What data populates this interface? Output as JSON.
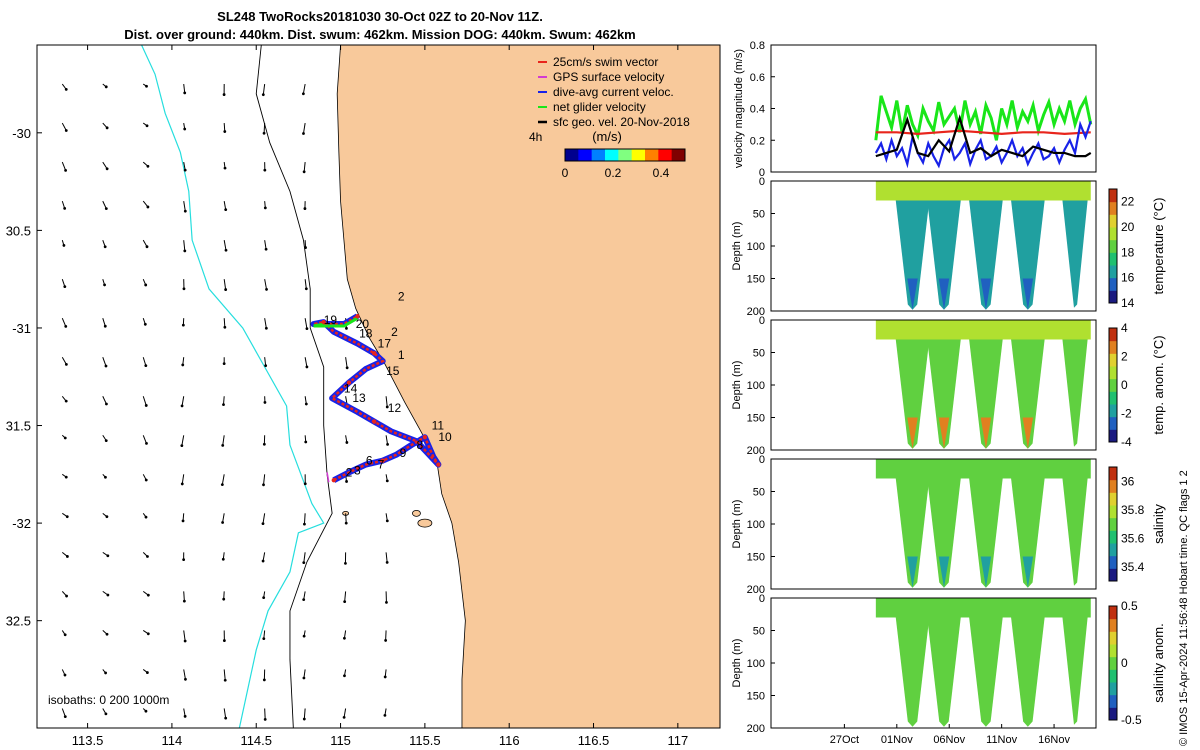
{
  "title_line1": "SL248 TwoRocks20181030 30-Oct 02Z to 20-Nov 11Z.",
  "title_line2": "Dist. over ground: 440km. Dist. swum: 462km. Mission DOG: 440km. Swum: 462km",
  "footer_credit": "© IMOS 15-Apr-2024 11:56:48 Hobart time. QC flags 1  2",
  "colors": {
    "land": "#f8c99b",
    "swim": "#e8251c",
    "gps": "#d23bd2",
    "dive": "#1822e8",
    "net": "#19e619",
    "geo": "#000000",
    "contour": "#26dede"
  },
  "chart_data": [
    {
      "type": "map",
      "id": "track_map",
      "xlim": [
        113.2,
        117.25
      ],
      "ylim": [
        -33.05,
        -29.55
      ],
      "x_ticks": [
        113.5,
        114,
        114.5,
        115,
        115.5,
        116,
        116.5,
        117
      ],
      "x_tick_labels": [
        "113.5",
        "114",
        "114.5",
        "115",
        "115.5",
        "116",
        "116.5",
        "117"
      ],
      "y_ticks": [
        -30,
        -30.5,
        -31,
        -31.5,
        -32,
        -32.5
      ],
      "y_tick_labels": [
        "-30",
        "30.5",
        "-31",
        "31.5",
        "-32",
        "32.5"
      ],
      "legend": {
        "position": "top-right",
        "entries": [
          "25cm/s swim vector",
          "GPS surface velocity",
          "dive-avg current veloc.",
          "net glider velocity",
          "sfc geo. vel. 20-Nov-2018"
        ]
      },
      "colorbar": {
        "label": "(m/s)",
        "ticks": [
          0,
          0.2,
          0.4
        ],
        "tick_labels": [
          "0",
          "0.2",
          "0.4"
        ],
        "range": [
          0,
          0.5
        ]
      },
      "time_note": "4h",
      "isobath_note": "isobaths: 0   200  1000m",
      "track": [
        [
          114.96,
          -31.78
        ],
        [
          115.05,
          -31.74
        ],
        [
          115.15,
          -31.7
        ],
        [
          115.25,
          -31.68
        ],
        [
          115.33,
          -31.65
        ],
        [
          115.42,
          -31.6
        ],
        [
          115.5,
          -31.56
        ],
        [
          115.52,
          -31.6
        ],
        [
          115.55,
          -31.66
        ],
        [
          115.58,
          -31.7
        ],
        [
          115.45,
          -31.58
        ],
        [
          115.3,
          -31.53
        ],
        [
          115.2,
          -31.48
        ],
        [
          115.1,
          -31.43
        ],
        [
          114.95,
          -31.36
        ],
        [
          115.05,
          -31.28
        ],
        [
          115.15,
          -31.21
        ],
        [
          115.25,
          -31.17
        ],
        [
          115.2,
          -31.13
        ],
        [
          115.1,
          -31.08
        ],
        [
          114.96,
          -31.02
        ],
        [
          114.9,
          -30.97
        ],
        [
          114.84,
          -30.98
        ],
        [
          115.02,
          -30.98
        ],
        [
          115.1,
          -30.94
        ]
      ],
      "day_labels": [
        {
          "text": "2",
          "lon": 115.34,
          "lat": -30.86
        },
        {
          "text": "20",
          "lon": 115.09,
          "lat": -31.0
        },
        {
          "text": "19",
          "lon": 114.9,
          "lat": -30.98
        },
        {
          "text": "18",
          "lon": 115.11,
          "lat": -31.05
        },
        {
          "text": "17",
          "lon": 115.22,
          "lat": -31.1
        },
        {
          "text": "2",
          "lon": 115.3,
          "lat": -31.04
        },
        {
          "text": "1",
          "lon": 115.34,
          "lat": -31.16
        },
        {
          "text": "15",
          "lon": 115.27,
          "lat": -31.24
        },
        {
          "text": "14",
          "lon": 115.02,
          "lat": -31.33
        },
        {
          "text": "13",
          "lon": 115.07,
          "lat": -31.38
        },
        {
          "text": "12",
          "lon": 115.28,
          "lat": -31.43
        },
        {
          "text": "11",
          "lon": 115.54,
          "lat": -31.52
        },
        {
          "text": "10",
          "lon": 115.58,
          "lat": -31.58
        },
        {
          "text": "8",
          "lon": 115.45,
          "lat": -31.62
        },
        {
          "text": "9",
          "lon": 115.35,
          "lat": -31.66
        },
        {
          "text": "7",
          "lon": 115.22,
          "lat": -31.72
        },
        {
          "text": "6",
          "lon": 115.15,
          "lat": -31.7
        },
        {
          "text": "2",
          "lon": 115.03,
          "lat": -31.76
        },
        {
          "text": "3",
          "lon": 115.08,
          "lat": -31.75
        }
      ]
    },
    {
      "type": "line",
      "id": "velocity_magnitude",
      "ylabel": "velocity magnitude (m/s)",
      "ylim": [
        0,
        0.8
      ],
      "y_ticks": [
        0,
        0.2,
        0.4,
        0.6,
        0.8
      ],
      "y_tick_labels": [
        "0",
        "0.2",
        "0.4",
        "0.6",
        "0.8"
      ],
      "xlim": [
        20,
        51
      ],
      "x_unit": "day of Oct-2018",
      "series": [
        {
          "name": "net glider velocity",
          "color": "#19e619",
          "x": [
            30,
            30.5,
            31,
            31.5,
            32,
            32.5,
            33,
            33.5,
            34,
            34.5,
            35,
            35.5,
            36,
            36.5,
            37,
            37.5,
            38,
            38.5,
            39,
            39.5,
            40,
            40.5,
            41,
            41.5,
            42,
            42.5,
            43,
            43.5,
            44,
            44.5,
            45,
            45.5,
            46,
            46.5,
            47,
            47.5,
            48,
            48.5,
            49,
            49.5,
            50,
            50.5
          ],
          "y": [
            0.2,
            0.48,
            0.38,
            0.28,
            0.45,
            0.25,
            0.42,
            0.3,
            0.23,
            0.4,
            0.32,
            0.26,
            0.44,
            0.3,
            0.35,
            0.4,
            0.25,
            0.45,
            0.3,
            0.38,
            0.24,
            0.42,
            0.34,
            0.2,
            0.4,
            0.3,
            0.45,
            0.28,
            0.38,
            0.32,
            0.42,
            0.26,
            0.36,
            0.44,
            0.3,
            0.4,
            0.32,
            0.45,
            0.3,
            0.4,
            0.46,
            0.3
          ]
        },
        {
          "name": "25cm/s swim vector",
          "color": "#e8251c",
          "x": [
            30,
            32,
            34,
            36,
            38,
            40,
            42,
            44,
            46,
            48,
            50.5
          ],
          "y": [
            0.25,
            0.25,
            0.24,
            0.25,
            0.26,
            0.25,
            0.24,
            0.25,
            0.25,
            0.24,
            0.25
          ]
        },
        {
          "name": "dive-avg current veloc.",
          "color": "#1822e8",
          "x": [
            30,
            30.5,
            31,
            31.5,
            32,
            32.5,
            33,
            33.5,
            34,
            34.5,
            35,
            35.5,
            36,
            36.5,
            37,
            37.5,
            38,
            38.5,
            39,
            39.5,
            40,
            40.5,
            41,
            41.5,
            42,
            42.5,
            43,
            43.5,
            44,
            44.5,
            45,
            45.5,
            46,
            46.5,
            47,
            47.5,
            48,
            48.5,
            49,
            49.5,
            50,
            50.5
          ],
          "y": [
            0.12,
            0.18,
            0.08,
            0.2,
            0.1,
            0.15,
            0.05,
            0.22,
            0.12,
            0.06,
            0.18,
            0.1,
            0.04,
            0.15,
            0.2,
            0.08,
            0.12,
            0.18,
            0.05,
            0.14,
            0.2,
            0.08,
            0.1,
            0.16,
            0.06,
            0.12,
            0.2,
            0.1,
            0.15,
            0.05,
            0.12,
            0.18,
            0.08,
            0.1,
            0.15,
            0.06,
            0.14,
            0.2,
            0.12,
            0.3,
            0.22,
            0.32
          ]
        },
        {
          "name": "sfc geo. vel. 20-Nov-2018",
          "color": "#000000",
          "x": [
            30,
            31,
            32,
            33,
            34,
            35,
            36,
            37,
            38,
            39,
            40,
            41,
            42,
            43,
            44,
            45,
            46,
            47,
            48,
            49,
            50,
            50.5
          ],
          "y": [
            0.1,
            0.12,
            0.14,
            0.33,
            0.12,
            0.1,
            0.2,
            0.13,
            0.34,
            0.12,
            0.15,
            0.1,
            0.14,
            0.12,
            0.1,
            0.16,
            0.14,
            0.12,
            0.12,
            0.1,
            0.1,
            0.12
          ]
        }
      ]
    },
    {
      "type": "heatmap",
      "id": "temperature_section",
      "ylabel": "Depth (m)",
      "ylim": [
        0,
        200
      ],
      "y_ticks": [
        0,
        50,
        100,
        150,
        200
      ],
      "y_tick_labels": [
        "0",
        "50",
        "100",
        "150",
        "200"
      ],
      "colorbar_label": "temperature (°C)",
      "colorbar_range": [
        14,
        23
      ],
      "colorbar_ticks": [
        14,
        16,
        18,
        20,
        22
      ],
      "colorbar_tick_labels": [
        "14",
        "16",
        "18",
        "20",
        "22"
      ],
      "surface_value": 19.8,
      "deep_value": 16.5,
      "bottom_value": 14.8
    },
    {
      "type": "heatmap",
      "id": "temperature_anomaly_section",
      "ylabel": "Depth (m)",
      "ylim": [
        0,
        200
      ],
      "y_ticks": [
        0,
        50,
        100,
        150,
        200
      ],
      "y_tick_labels": [
        "0",
        "50",
        "100",
        "150",
        "200"
      ],
      "colorbar_label": "temp. anom. (°C)",
      "colorbar_range": [
        -4,
        4
      ],
      "colorbar_ticks": [
        -4,
        -2,
        0,
        2,
        4
      ],
      "colorbar_tick_labels": [
        "-4",
        "-2",
        "0",
        "2",
        "4"
      ],
      "surface_value": 1.2,
      "deep_value": 0.0,
      "bottom_value": 2.5
    },
    {
      "type": "heatmap",
      "id": "salinity_section",
      "ylabel": "Depth (m)",
      "ylim": [
        0,
        200
      ],
      "y_ticks": [
        0,
        50,
        100,
        150,
        200
      ],
      "y_tick_labels": [
        "0",
        "50",
        "100",
        "150",
        "200"
      ],
      "colorbar_label": "salinity",
      "colorbar_range": [
        35.3,
        36.1
      ],
      "colorbar_ticks": [
        35.4,
        35.6,
        35.8,
        36.0
      ],
      "colorbar_tick_labels": [
        "35.4",
        "35.6",
        "35.8",
        "36"
      ],
      "surface_value": 35.66,
      "deep_value": 35.72,
      "bottom_value": 35.45
    },
    {
      "type": "heatmap",
      "id": "salinity_anomaly_section",
      "ylabel": "Depth (m)",
      "ylim": [
        0,
        200
      ],
      "y_ticks": [
        0,
        50,
        100,
        150,
        200
      ],
      "y_tick_labels": [
        "0",
        "50",
        "100",
        "150",
        "200"
      ],
      "colorbar_label": "salinity anom.",
      "colorbar_range": [
        -0.5,
        0.5
      ],
      "colorbar_ticks": [
        -0.5,
        0,
        0.5
      ],
      "colorbar_tick_labels": [
        "-0.5",
        "0",
        "0.5"
      ],
      "surface_value": 0.02,
      "deep_value": 0.0,
      "bottom_value": -0.05,
      "x_ticks": [
        27,
        32,
        37,
        42,
        47
      ],
      "x_tick_labels": [
        "27Oct",
        "01Nov",
        "06Nov",
        "11Nov",
        "16Nov"
      ]
    }
  ]
}
